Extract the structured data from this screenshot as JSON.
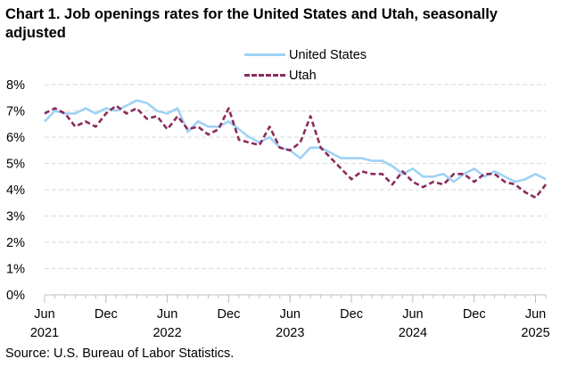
{
  "title": "Chart 1. Job openings rates for the United States and Utah, seasonally adjusted",
  "source": "Source: U.S. Bureau of Labor Statistics.",
  "colors": {
    "us": "#9ed2f5",
    "utah": "#8a2c5c",
    "grid": "#d9d9d9",
    "axis": "#bfbfbf"
  },
  "chart_data": {
    "type": "line",
    "title": "Chart 1. Job openings rates for the United States and Utah, seasonally adjusted",
    "xlabel": "",
    "ylabel": "",
    "ylim": [
      0,
      8
    ],
    "y_ticks": [
      "0%",
      "1%",
      "2%",
      "3%",
      "4%",
      "5%",
      "6%",
      "7%",
      "8%"
    ],
    "x_ticks": [
      {
        "index": 0,
        "month": "Jun",
        "year": "2021"
      },
      {
        "index": 6,
        "month": "Dec",
        "year": ""
      },
      {
        "index": 12,
        "month": "Jun",
        "year": "2022"
      },
      {
        "index": 18,
        "month": "Dec",
        "year": ""
      },
      {
        "index": 24,
        "month": "Jun",
        "year": "2023"
      },
      {
        "index": 30,
        "month": "Dec",
        "year": ""
      },
      {
        "index": 36,
        "month": "Jun",
        "year": "2024"
      },
      {
        "index": 42,
        "month": "Dec",
        "year": ""
      },
      {
        "index": 48,
        "month": "Jun",
        "year": "2025"
      }
    ],
    "grid": true,
    "legend": "top-center",
    "series": [
      {
        "name": "United States",
        "style": "solid",
        "values": [
          6.6,
          7.0,
          6.9,
          6.9,
          7.1,
          6.9,
          7.1,
          7.0,
          7.2,
          7.4,
          7.3,
          7.0,
          6.9,
          7.1,
          6.2,
          6.6,
          6.4,
          6.4,
          6.6,
          6.3,
          6.0,
          5.8,
          6.0,
          5.6,
          5.5,
          5.2,
          5.6,
          5.6,
          5.4,
          5.2,
          5.2,
          5.2,
          5.1,
          5.1,
          4.9,
          4.6,
          4.8,
          4.5,
          4.5,
          4.6,
          4.3,
          4.6,
          4.8,
          4.5,
          4.7,
          4.5,
          4.3,
          4.4,
          4.6,
          4.4
        ]
      },
      {
        "name": "Utah",
        "style": "dashed",
        "values": [
          6.9,
          7.1,
          6.9,
          6.4,
          6.6,
          6.4,
          6.9,
          7.2,
          6.9,
          7.1,
          6.7,
          6.8,
          6.3,
          6.8,
          6.3,
          6.4,
          6.1,
          6.3,
          7.1,
          5.9,
          5.8,
          5.7,
          6.4,
          5.6,
          5.5,
          5.8,
          6.8,
          5.6,
          5.2,
          4.8,
          4.4,
          4.7,
          4.6,
          4.6,
          4.2,
          4.7,
          4.3,
          4.1,
          4.3,
          4.2,
          4.6,
          4.6,
          4.3,
          4.6,
          4.6,
          4.3,
          4.2,
          3.9,
          3.7,
          4.2
        ]
      }
    ]
  }
}
